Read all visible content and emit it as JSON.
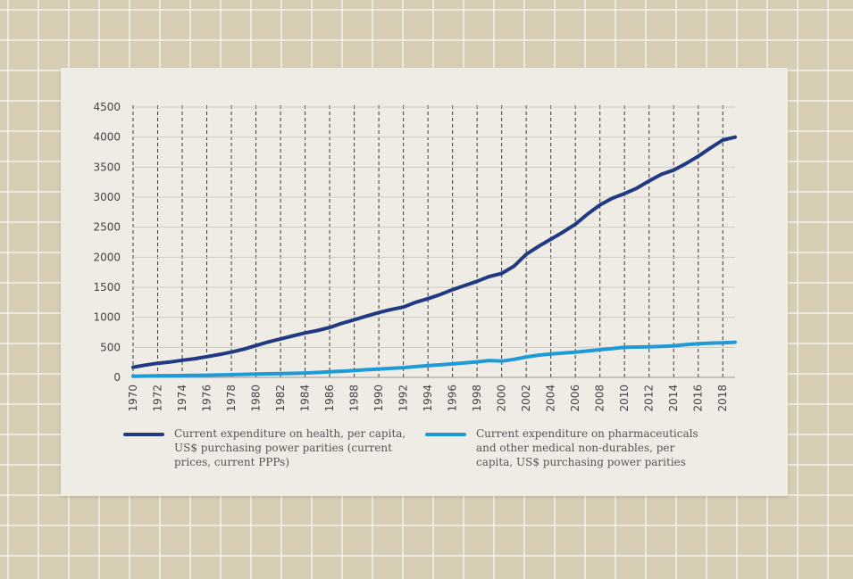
{
  "colors": {
    "health": "#1f3a82",
    "pharma": "#1e9bd7",
    "grid": "#3a3a3a"
  },
  "chart_data": {
    "type": "line",
    "title": "",
    "xlabel": "",
    "ylabel": "",
    "ylim": [
      0,
      4500
    ],
    "yticks": [
      0,
      500,
      1000,
      1500,
      2000,
      2500,
      3000,
      3500,
      4000,
      4500
    ],
    "xticks": [
      1970,
      1972,
      1974,
      1976,
      1978,
      1980,
      1982,
      1984,
      1986,
      1988,
      1990,
      1992,
      1994,
      1996,
      1998,
      2000,
      2002,
      2004,
      2006,
      2008,
      2010,
      2012,
      2014,
      2016,
      2018
    ],
    "x": [
      1970,
      1971,
      1972,
      1973,
      1974,
      1975,
      1976,
      1977,
      1978,
      1979,
      1980,
      1981,
      1982,
      1983,
      1984,
      1985,
      1986,
      1987,
      1988,
      1989,
      1990,
      1991,
      1992,
      1993,
      1994,
      1995,
      1996,
      1997,
      1998,
      1999,
      2000,
      2001,
      2002,
      2003,
      2004,
      2005,
      2006,
      2007,
      2008,
      2009,
      2010,
      2011,
      2012,
      2013,
      2014,
      2015,
      2016,
      2017,
      2018,
      2019
    ],
    "grid": "vertical dashed at each year, horizontal at y ticks",
    "series": [
      {
        "name": "Current expenditure on health, per capita, US$ purchasing power parities (current prices, current PPPs)",
        "color": "#1f3a82",
        "values": [
          170,
          205,
          235,
          255,
          285,
          310,
          345,
          380,
          420,
          470,
          530,
          590,
          640,
          690,
          740,
          780,
          830,
          900,
          960,
          1020,
          1080,
          1130,
          1170,
          1250,
          1310,
          1380,
          1460,
          1530,
          1600,
          1680,
          1730,
          1850,
          2050,
          2180,
          2300,
          2420,
          2550,
          2720,
          2870,
          2980,
          3060,
          3150,
          3270,
          3380,
          3450,
          3560,
          3680,
          3820,
          3950,
          4000
        ]
      },
      {
        "name": "Current expenditure on pharmaceuticals and other medical non-durables, per capita, US$ purchasing power parities",
        "color": "#1e9bd7",
        "values": [
          20,
          22,
          25,
          28,
          30,
          33,
          36,
          40,
          45,
          50,
          56,
          60,
          63,
          67,
          73,
          82,
          92,
          102,
          115,
          128,
          140,
          150,
          162,
          180,
          195,
          210,
          225,
          240,
          258,
          280,
          270,
          300,
          340,
          370,
          390,
          405,
          420,
          440,
          460,
          480,
          500,
          505,
          510,
          515,
          525,
          545,
          560,
          570,
          575,
          585
        ]
      }
    ],
    "legend": "bottom"
  }
}
